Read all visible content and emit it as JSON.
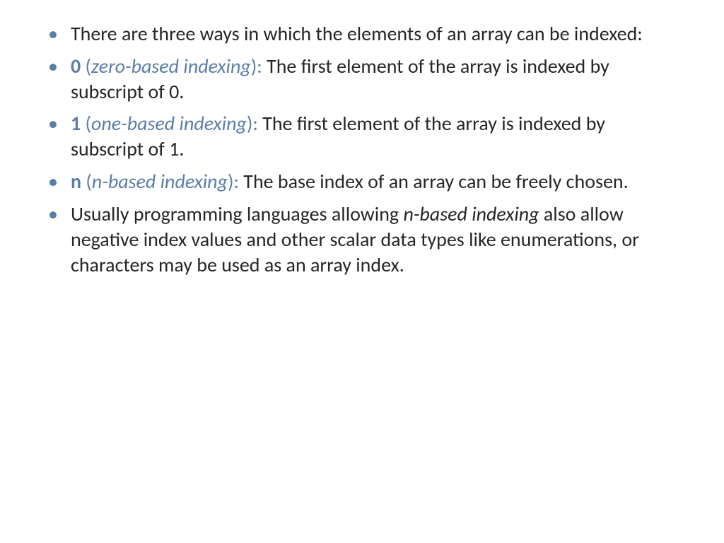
{
  "slide": {
    "background_color": "#ffffff",
    "text_color": "#262626",
    "accent_color": "#5b7da9",
    "bullet_color": "#5a7ca8",
    "font_family": "Calibri",
    "body_fontsize_pt": 28,
    "line_height": 1.28,
    "bullets": [
      {
        "intro": "There are three ways in which the elements of an array can be indexed:"
      },
      {
        "key": "0",
        "paren_open": " (",
        "term": "zero-based indexing",
        "paren_close": "): ",
        "rest": "The first element of the array is indexed by subscript of 0."
      },
      {
        "key": "1",
        "paren_open": " (",
        "term": "one-based indexing",
        "paren_close": "): ",
        "rest": "The first element of the array is indexed by subscript of 1."
      },
      {
        "key": "n",
        "paren_open": " (",
        "term": "n-based indexing",
        "paren_close": "): ",
        "rest": "The base index of an array can be freely chosen."
      },
      {
        "pre": "Usually programming languages allowing ",
        "em": "n-based indexing",
        "post": " also allow negative index values and other scalar data types like enumerations, or characters may be used as an array index."
      }
    ]
  }
}
